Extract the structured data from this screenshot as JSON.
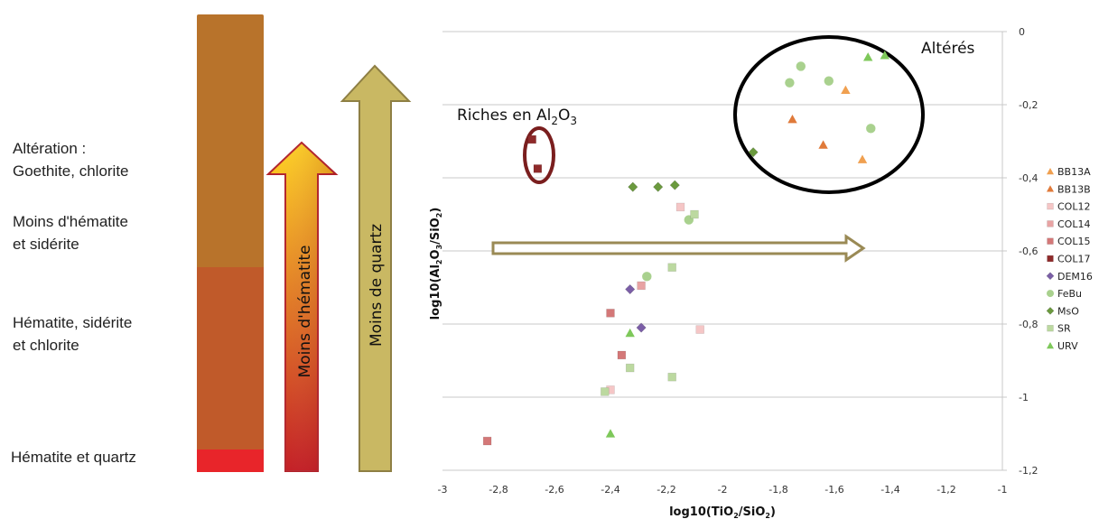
{
  "left_panel": {
    "labels": {
      "alteration": "Altération : \nGoethite, chlorite",
      "moins_hematite_siderite": "Moins d'hématite\net sidérite",
      "hematite_siderite_chlorite": "Hématite, sidérite\net chlorite",
      "hematite_quartz": "Hématite et quartz"
    },
    "colors": {
      "bar_top": "#B8732B",
      "bar_middle": "#C05A2A",
      "bar_bottom": "#E8252A",
      "arrow_hematite_top": "#FFD21C",
      "arrow_hematite_bottom": "#C2141C",
      "arrow_hematite_border": "#B2222A",
      "arrow_quartz_fill": "#C9B863",
      "arrow_quartz_border": "#8E7F44"
    },
    "arrow_hematite_label": "Moins d'hématite",
    "arrow_quartz_label": "Moins de quartz"
  },
  "chart_data": {
    "type": "scatter",
    "xlabel": "log10(TiO2/SiO2)",
    "ylabel": "log10(Al2O3/SiO2)",
    "xlim": [
      -3,
      -1
    ],
    "ylim": [
      -1.2,
      0
    ],
    "x_ticks": [
      -3,
      -2.8,
      -2.6,
      -2.4,
      -2.2,
      -2,
      -1.8,
      -1.6,
      -1.4,
      -1.2,
      -1
    ],
    "x_tick_labels": [
      "-3",
      "-2,8",
      "-2,6",
      "-2,4",
      "-2,2",
      "-2",
      "-1,8",
      "-1,6",
      "-1,4",
      "-1,2",
      "-1"
    ],
    "y_ticks": [
      0,
      -0.2,
      -0.4,
      -0.6,
      -0.8,
      -1,
      -1.2
    ],
    "y_tick_labels": [
      "0",
      "-0,2",
      "-0,4",
      "-0,6",
      "-0,8",
      "-1",
      "-1,2"
    ],
    "grid": "horizontal",
    "y_axis_side": "right",
    "legend_position": "right",
    "annotations": {
      "altered": "Altérés",
      "rich_prefix": "Riches en Al",
      "rich_sub1": "2",
      "rich_mid": "O",
      "rich_sub2": "3"
    },
    "series": [
      {
        "name": "BB13A",
        "marker": "triangle",
        "color": "#F0A050",
        "points": [
          [
            -1.56,
            -0.16
          ],
          [
            -1.5,
            -0.35
          ]
        ]
      },
      {
        "name": "BB13B",
        "marker": "triangle",
        "color": "#E07A3A",
        "points": [
          [
            -1.75,
            -0.24
          ],
          [
            -1.64,
            -0.31
          ]
        ]
      },
      {
        "name": "COL12",
        "marker": "square",
        "color": "#F5C6C6",
        "points": [
          [
            -2.15,
            -0.48
          ],
          [
            -2.08,
            -0.815
          ],
          [
            -2.4,
            -0.98
          ]
        ]
      },
      {
        "name": "COL14",
        "marker": "square",
        "color": "#E8A3A3",
        "points": [
          [
            -2.29,
            -0.695
          ]
        ]
      },
      {
        "name": "COL15",
        "marker": "square",
        "color": "#D47878",
        "points": [
          [
            -2.4,
            -0.77
          ],
          [
            -2.36,
            -0.885
          ],
          [
            -2.84,
            -1.12
          ]
        ]
      },
      {
        "name": "COL17",
        "marker": "square",
        "color": "#8E2A2A",
        "points": [
          [
            -2.68,
            -0.295
          ],
          [
            -2.66,
            -0.375
          ]
        ]
      },
      {
        "name": "DEM16",
        "marker": "diamond",
        "color": "#7B5EA7",
        "points": [
          [
            -2.33,
            -0.705
          ],
          [
            -2.29,
            -0.81
          ]
        ]
      },
      {
        "name": "FeBu",
        "marker": "circle",
        "color": "#A9D18E",
        "points": [
          [
            -1.72,
            -0.095
          ],
          [
            -1.76,
            -0.14
          ],
          [
            -1.62,
            -0.135
          ],
          [
            -1.47,
            -0.265
          ],
          [
            -2.12,
            -0.515
          ],
          [
            -2.27,
            -0.67
          ]
        ]
      },
      {
        "name": "MsO",
        "marker": "diamond",
        "color": "#6B9A3E",
        "points": [
          [
            -1.89,
            -0.33
          ],
          [
            -2.32,
            -0.425
          ],
          [
            -2.23,
            -0.425
          ],
          [
            -2.17,
            -0.42
          ]
        ]
      },
      {
        "name": "SR",
        "marker": "square",
        "color": "#BCD9A0",
        "points": [
          [
            -2.1,
            -0.5
          ],
          [
            -2.18,
            -0.645
          ],
          [
            -2.33,
            -0.92
          ],
          [
            -2.18,
            -0.945
          ],
          [
            -2.42,
            -0.985
          ]
        ]
      },
      {
        "name": "URV",
        "marker": "triangle",
        "color": "#7EC85A",
        "points": [
          [
            -1.48,
            -0.07
          ],
          [
            -1.42,
            -0.065
          ],
          [
            -2.33,
            -0.825
          ],
          [
            -2.4,
            -1.1
          ]
        ]
      }
    ]
  }
}
